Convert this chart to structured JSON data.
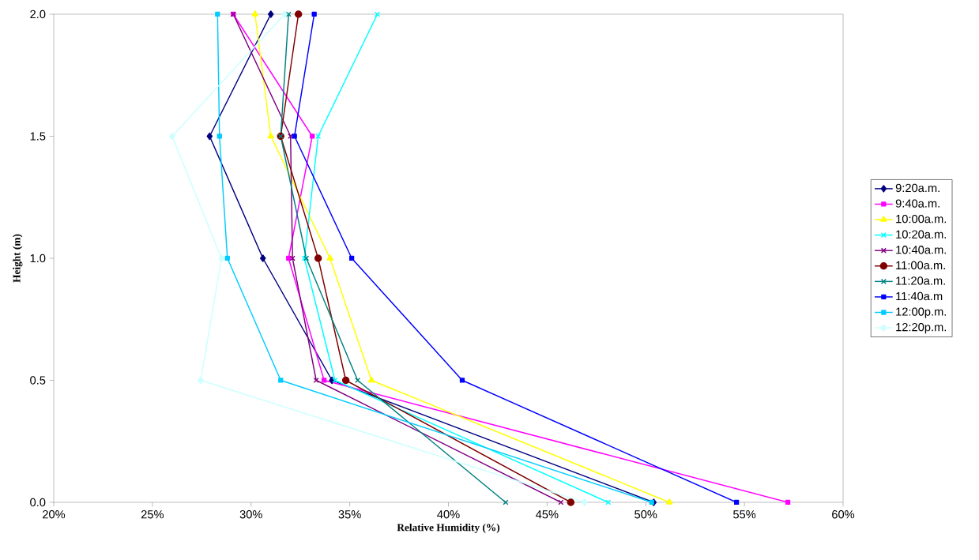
{
  "chart_data": {
    "type": "line",
    "xlabel": "Relative Humidity (%)",
    "ylabel": "Height (m)",
    "xlim": [
      20,
      60
    ],
    "xticks": [
      {
        "value": 20,
        "label": "20%"
      },
      {
        "value": 25,
        "label": "25%"
      },
      {
        "value": 30,
        "label": "30%"
      },
      {
        "value": 35,
        "label": "35%"
      },
      {
        "value": 40,
        "label": "40%"
      },
      {
        "value": 45,
        "label": "45%"
      },
      {
        "value": 50,
        "label": "50%"
      },
      {
        "value": 55,
        "label": "55%"
      },
      {
        "value": 60,
        "label": "60%"
      }
    ],
    "ylim": [
      0,
      2
    ],
    "yticks": [
      {
        "value": 0,
        "label": "0.0"
      },
      {
        "value": 0.5,
        "label": "0.5"
      },
      {
        "value": 1,
        "label": "1.0"
      },
      {
        "value": 1.5,
        "label": "1.5"
      },
      {
        "value": 2,
        "label": "2.0"
      }
    ],
    "grid": false,
    "legend": "right",
    "line_style": "solid",
    "series": [
      {
        "name": "9:20a.m.",
        "color": "#000080",
        "marker": "diamond",
        "x": [
          50.4,
          34.1,
          30.6,
          27.9,
          31.0
        ],
        "values": [
          0,
          0.5,
          1,
          1.5,
          2
        ]
      },
      {
        "name": "9:40a.m.",
        "color": "#ff00ff",
        "marker": "square",
        "x": [
          57.2,
          33.7,
          31.9,
          33.1,
          29.1
        ],
        "values": [
          0,
          0.5,
          1,
          1.5,
          2
        ]
      },
      {
        "name": "10:00a.m.",
        "color": "#ffff00",
        "marker": "triangle",
        "x": [
          51.2,
          36.1,
          34.0,
          31.0,
          30.2
        ],
        "values": [
          0,
          0.5,
          1,
          1.5,
          2
        ]
      },
      {
        "name": "10:20a.m.",
        "color": "#00ffff",
        "marker": "cross",
        "x": [
          48.1,
          34.25,
          32.7,
          33.4,
          36.4
        ],
        "values": [
          0,
          0.5,
          1,
          1.5,
          2
        ]
      },
      {
        "name": "10:40a.m.",
        "color": "#800080",
        "marker": "cross",
        "x": [
          45.7,
          33.3,
          32.1,
          32.0,
          29.1
        ],
        "values": [
          0,
          0.5,
          1,
          1.5,
          2
        ]
      },
      {
        "name": "11:00a.m.",
        "color": "#800000",
        "marker": "circle",
        "x": [
          46.2,
          34.8,
          33.4,
          31.5,
          32.4
        ],
        "values": [
          0,
          0.5,
          1,
          1.5,
          2
        ]
      },
      {
        "name": "11:20a.m.",
        "color": "#008080",
        "marker": "cross",
        "x": [
          42.9,
          35.4,
          32.8,
          31.5,
          31.9
        ],
        "values": [
          0,
          0.5,
          1,
          1.5,
          2
        ]
      },
      {
        "name": "11:40a.m",
        "color": "#0000ff",
        "marker": "square",
        "x": [
          54.6,
          40.7,
          35.1,
          32.2,
          33.2
        ],
        "values": [
          0,
          0.5,
          1,
          1.5,
          2
        ]
      },
      {
        "name": "12:00p.m.",
        "color": "#00ccff",
        "marker": "square",
        "x": [
          50.3,
          31.5,
          28.8,
          28.4,
          28.3
        ],
        "values": [
          0,
          0.5,
          1,
          1.5,
          2
        ]
      },
      {
        "name": "12:20p.m.",
        "color": "#ccffff",
        "marker": "diamond",
        "x": [
          46.9,
          27.45,
          28.5,
          26.0,
          31.7
        ],
        "values": [
          0,
          0.5,
          1,
          1.5,
          2
        ]
      }
    ]
  }
}
